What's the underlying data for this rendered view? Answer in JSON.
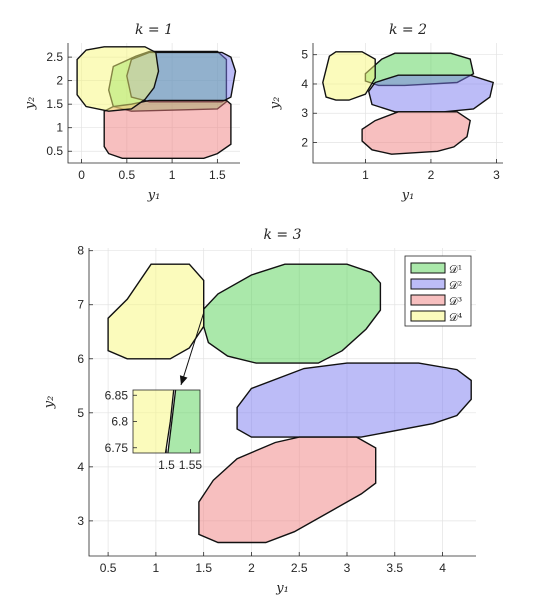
{
  "chart_data": [
    {
      "type": "area",
      "title": "k = 1",
      "xlabel": "y₁",
      "ylabel": "y₂",
      "xlim": [
        -0.15,
        1.75
      ],
      "ylim": [
        0.25,
        2.8
      ],
      "xticks": [
        "0",
        "0.5",
        "1",
        "1.5"
      ],
      "xtick_values": [
        0,
        0.5,
        1,
        1.5
      ],
      "yticks": [
        "0.5",
        "1",
        "1.5",
        "2",
        "2.5"
      ],
      "ytick_values": [
        0.5,
        1,
        1.5,
        2,
        2.5
      ],
      "grid": true,
      "series": [
        {
          "color": "#55d255",
          "vertices": [
            [
              0.6,
              2.52
            ],
            [
              0.75,
              2.62
            ],
            [
              1.5,
              2.62
            ],
            [
              1.6,
              2.45
            ],
            [
              1.6,
              1.55
            ],
            [
              1.5,
              1.4
            ],
            [
              0.55,
              1.35
            ],
            [
              0.35,
              1.45
            ],
            [
              0.3,
              1.8
            ],
            [
              0.35,
              2.3
            ]
          ]
        },
        {
          "color": "#7a7af0",
          "vertices": [
            [
              0.75,
              2.6
            ],
            [
              1.55,
              2.6
            ],
            [
              1.65,
              2.5
            ],
            [
              1.7,
              2.2
            ],
            [
              1.65,
              1.65
            ],
            [
              1.55,
              1.55
            ],
            [
              0.75,
              1.55
            ],
            [
              0.55,
              1.65
            ],
            [
              0.5,
              2.1
            ],
            [
              0.55,
              2.45
            ]
          ]
        },
        {
          "color": "#f08080",
          "vertices": [
            [
              0.55,
              1.5
            ],
            [
              0.75,
              1.58
            ],
            [
              1.6,
              1.58
            ],
            [
              1.65,
              1.5
            ],
            [
              1.65,
              0.65
            ],
            [
              1.5,
              0.45
            ],
            [
              1.35,
              0.35
            ],
            [
              0.45,
              0.35
            ],
            [
              0.3,
              0.45
            ],
            [
              0.25,
              0.6
            ],
            [
              0.25,
              1.35
            ],
            [
              0.35,
              1.45
            ]
          ]
        },
        {
          "color": "#f7f77a",
          "vertices": [
            [
              0.05,
              2.65
            ],
            [
              0.25,
              2.72
            ],
            [
              0.7,
              2.72
            ],
            [
              0.82,
              2.6
            ],
            [
              0.85,
              2.2
            ],
            [
              0.8,
              1.85
            ],
            [
              0.7,
              1.6
            ],
            [
              0.55,
              1.4
            ],
            [
              0.3,
              1.35
            ],
            [
              0.05,
              1.45
            ],
            [
              -0.05,
              1.7
            ],
            [
              -0.05,
              2.45
            ]
          ]
        }
      ]
    },
    {
      "type": "area",
      "title": "k = 2",
      "xlabel": "y₁",
      "ylabel": "y₂",
      "xlim": [
        0.2,
        3.1
      ],
      "ylim": [
        1.3,
        5.4
      ],
      "xticks": [
        "1",
        "2",
        "3"
      ],
      "xtick_values": [
        1,
        2,
        3
      ],
      "yticks": [
        "2",
        "3",
        "4",
        "5"
      ],
      "ytick_values": [
        2,
        3,
        4,
        5
      ],
      "grid": true,
      "series": [
        {
          "color": "#55d255",
          "vertices": [
            [
              1.25,
              4.85
            ],
            [
              1.45,
              5.05
            ],
            [
              2.3,
              5.05
            ],
            [
              2.6,
              4.85
            ],
            [
              2.65,
              4.35
            ],
            [
              2.4,
              4.05
            ],
            [
              1.6,
              3.95
            ],
            [
              1.2,
              3.95
            ],
            [
              1.0,
              4.1
            ],
            [
              1.0,
              4.35
            ]
          ]
        },
        {
          "color": "#7a7af0",
          "vertices": [
            [
              1.15,
              4.05
            ],
            [
              1.5,
              4.3
            ],
            [
              2.6,
              4.3
            ],
            [
              2.95,
              4.05
            ],
            [
              2.9,
              3.55
            ],
            [
              2.65,
              3.15
            ],
            [
              2.2,
              3.05
            ],
            [
              1.45,
              3.05
            ],
            [
              1.1,
              3.3
            ],
            [
              1.05,
              3.75
            ]
          ]
        },
        {
          "color": "#f08080",
          "vertices": [
            [
              1.15,
              2.75
            ],
            [
              1.5,
              3.05
            ],
            [
              2.4,
              3.05
            ],
            [
              2.6,
              2.75
            ],
            [
              2.55,
              2.2
            ],
            [
              2.35,
              1.85
            ],
            [
              2.1,
              1.7
            ],
            [
              1.4,
              1.6
            ],
            [
              1.1,
              1.75
            ],
            [
              0.95,
              2.05
            ],
            [
              0.95,
              2.45
            ]
          ]
        },
        {
          "color": "#f7f77a",
          "vertices": [
            [
              0.45,
              4.95
            ],
            [
              0.55,
              5.1
            ],
            [
              0.95,
              5.1
            ],
            [
              1.15,
              4.85
            ],
            [
              1.15,
              4.2
            ],
            [
              1.0,
              3.65
            ],
            [
              0.75,
              3.45
            ],
            [
              0.55,
              3.45
            ],
            [
              0.4,
              3.55
            ],
            [
              0.35,
              4.05
            ]
          ]
        }
      ]
    },
    {
      "type": "area",
      "title": "k = 3",
      "xlabel": "y₁",
      "ylabel": "y₂",
      "xlim": [
        0.3,
        4.35
      ],
      "ylim": [
        2.35,
        8.05
      ],
      "xticks": [
        "0.5",
        "1",
        "1.5",
        "2",
        "2.5",
        "3",
        "3.5",
        "4"
      ],
      "xtick_values": [
        0.5,
        1,
        1.5,
        2,
        2.5,
        3,
        3.5,
        4
      ],
      "yticks": [
        "3",
        "4",
        "5",
        "6",
        "7",
        "8"
      ],
      "ytick_values": [
        3,
        4,
        5,
        6,
        7,
        8
      ],
      "grid": true,
      "legend": {
        "placement": "top-right",
        "entries": [
          "𝒟¹",
          "𝒟²",
          "𝒟³",
          "𝒟⁴"
        ]
      },
      "series": [
        {
          "name": "𝒟¹",
          "color": "#55d255",
          "vertices": [
            [
              1.5,
              6.92
            ],
            [
              1.65,
              7.2
            ],
            [
              2.0,
              7.55
            ],
            [
              2.35,
              7.75
            ],
            [
              3.0,
              7.75
            ],
            [
              3.25,
              7.6
            ],
            [
              3.35,
              7.4
            ],
            [
              3.35,
              6.9
            ],
            [
              3.2,
              6.55
            ],
            [
              2.95,
              6.15
            ],
            [
              2.7,
              5.92
            ],
            [
              2.05,
              5.92
            ],
            [
              1.75,
              6.05
            ],
            [
              1.55,
              6.3
            ],
            [
              1.5,
              6.6
            ]
          ]
        },
        {
          "name": "𝒟²",
          "color": "#7a7af0",
          "vertices": [
            [
              1.85,
              5.1
            ],
            [
              2.0,
              5.45
            ],
            [
              2.55,
              5.82
            ],
            [
              3.0,
              5.92
            ],
            [
              3.75,
              5.92
            ],
            [
              4.15,
              5.8
            ],
            [
              4.3,
              5.6
            ],
            [
              4.3,
              5.25
            ],
            [
              4.15,
              4.95
            ],
            [
              3.9,
              4.8
            ],
            [
              3.15,
              4.55
            ],
            [
              2.0,
              4.55
            ],
            [
              1.85,
              4.7
            ]
          ]
        },
        {
          "name": "𝒟³",
          "color": "#f08080",
          "vertices": [
            [
              1.6,
              3.75
            ],
            [
              1.85,
              4.15
            ],
            [
              2.25,
              4.45
            ],
            [
              2.5,
              4.55
            ],
            [
              3.1,
              4.55
            ],
            [
              3.3,
              4.35
            ],
            [
              3.3,
              3.7
            ],
            [
              3.15,
              3.5
            ],
            [
              2.85,
              3.2
            ],
            [
              2.45,
              2.8
            ],
            [
              2.15,
              2.6
            ],
            [
              1.65,
              2.6
            ],
            [
              1.45,
              2.75
            ],
            [
              1.45,
              3.35
            ]
          ]
        },
        {
          "name": "𝒟⁴",
          "color": "#f7f77a",
          "vertices": [
            [
              0.7,
              7.1
            ],
            [
              0.95,
              7.75
            ],
            [
              1.35,
              7.75
            ],
            [
              1.5,
              7.45
            ],
            [
              1.5,
              6.6
            ],
            [
              1.35,
              6.2
            ],
            [
              1.15,
              6.0
            ],
            [
              0.7,
              6.0
            ],
            [
              0.5,
              6.15
            ],
            [
              0.5,
              6.75
            ]
          ]
        }
      ],
      "inset": {
        "xlim": [
          1.43,
          1.57
        ],
        "ylim": [
          6.74,
          6.86
        ],
        "xticks": [
          "1.5",
          "1.55"
        ],
        "xtick_values": [
          1.5,
          1.55
        ],
        "yticks": [
          "6.75",
          "6.8",
          "6.85"
        ],
        "ytick_values": [
          6.75,
          6.8,
          6.85
        ],
        "boundary_yellow": [
          [
            1.498,
            6.74
          ],
          [
            1.508,
            6.8
          ],
          [
            1.515,
            6.86
          ]
        ],
        "boundary_green": [
          [
            1.503,
            6.74
          ],
          [
            1.511,
            6.8
          ],
          [
            1.519,
            6.86
          ]
        ],
        "colors": {
          "left": "#f7f77a",
          "right": "#55d255"
        }
      }
    }
  ]
}
